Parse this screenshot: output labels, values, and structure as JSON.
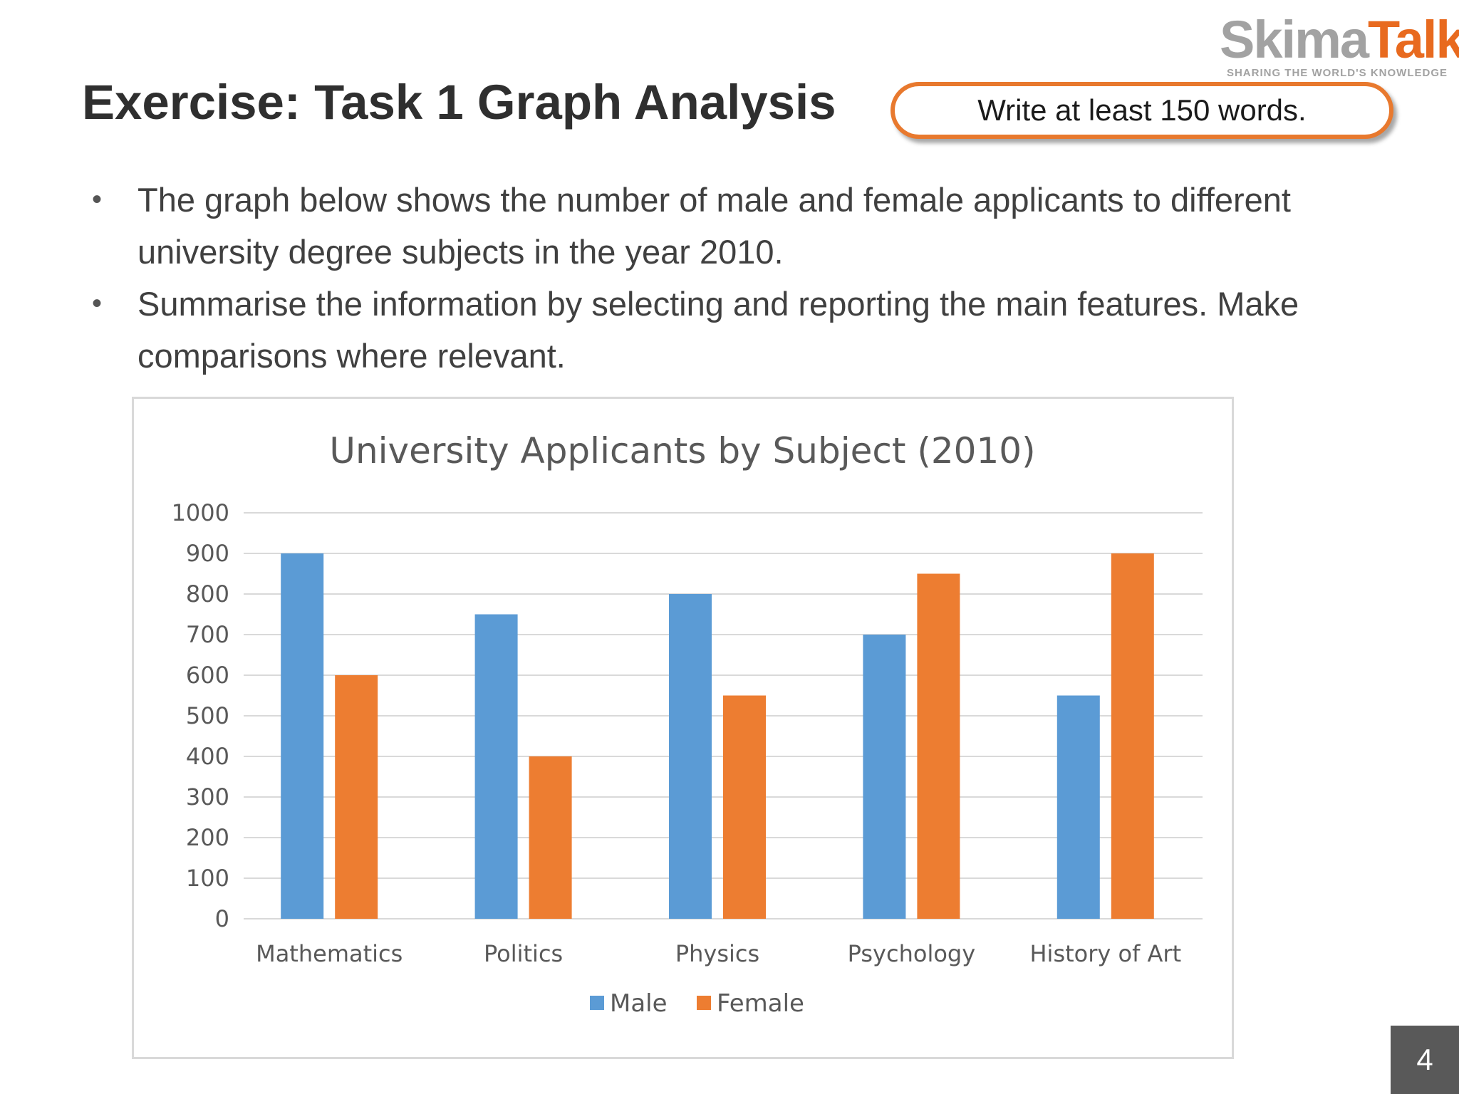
{
  "logo": {
    "brand_part1": "Skima",
    "brand_part2": "Talk",
    "tagline": "SHARING THE WORLD'S KNOWLEDGE"
  },
  "slide": {
    "title": "Exercise: Task 1 Graph Analysis",
    "word_requirement": "Write at least 150 words.",
    "bullets": [
      "The graph below shows the number of male and female applicants to different university degree subjects in the year 2010.",
      "Summarise the information by selecting and reporting the main features. Make comparisons where relevant."
    ],
    "bullet_symbol": "•",
    "page_number": "4"
  },
  "colors": {
    "accent_orange": "#e8792e",
    "male": "#5b9bd5",
    "female": "#ed7d31"
  },
  "chart_data": {
    "type": "bar",
    "title": "University Applicants by Subject (2010)",
    "categories": [
      "Mathematics",
      "Politics",
      "Physics",
      "Psychology",
      "History of Art"
    ],
    "series": [
      {
        "name": "Male",
        "color": "#5b9bd5",
        "values": [
          900,
          750,
          800,
          700,
          550
        ]
      },
      {
        "name": "Female",
        "color": "#ed7d31",
        "values": [
          600,
          400,
          550,
          850,
          900
        ]
      }
    ],
    "xlabel": "",
    "ylabel": "",
    "ylim": [
      0,
      1000
    ],
    "yticks": [
      "0",
      "100",
      "200",
      "300",
      "400",
      "500",
      "600",
      "700",
      "800",
      "900",
      "1000"
    ],
    "grid": true,
    "legend_position": "bottom"
  }
}
